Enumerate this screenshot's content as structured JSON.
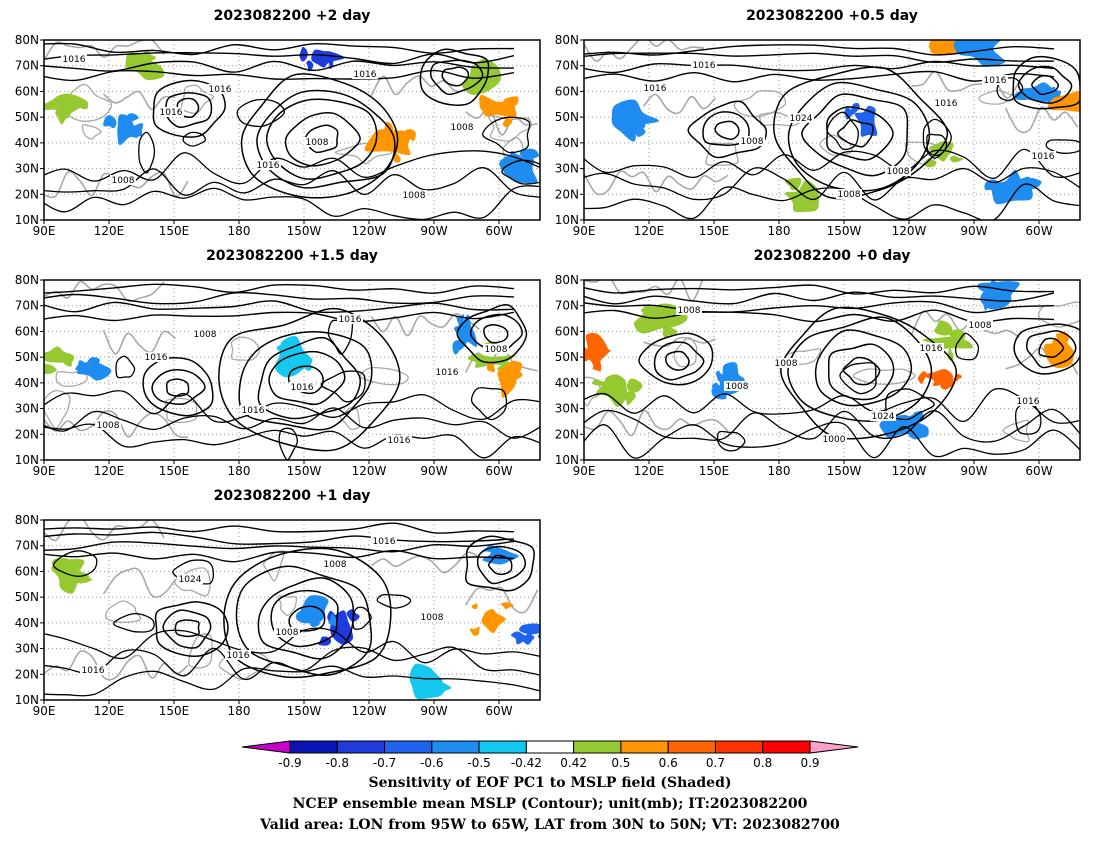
{
  "panels": [
    {
      "title": "2023082200 +2 day",
      "contour_labels": [
        "1016",
        "1016",
        "1016",
        "1016",
        "1008",
        "1008",
        "1016",
        "1008",
        "1008"
      ]
    },
    {
      "title": "2023082200 +0.5 day",
      "contour_labels": [
        "1016",
        "1008",
        "1008",
        "1016",
        "1016",
        "1016",
        "1024",
        "1008",
        "1016"
      ]
    },
    {
      "title": "2023082200 +1.5 day",
      "contour_labels": [
        "1016",
        "1016",
        "1016",
        "1016",
        "1008",
        "1008",
        "1016",
        "1016",
        "1008"
      ]
    },
    {
      "title": "2023082200 +0 day",
      "contour_labels": [
        "1008",
        "1000",
        "1016",
        "1016",
        "1008",
        "1008",
        "1024",
        "1008"
      ]
    },
    {
      "title": "2023082200 +1 day",
      "contour_labels": [
        "1016",
        "1008",
        "1008",
        "1016",
        "1024",
        "1008",
        "1016"
      ]
    }
  ],
  "axes": {
    "lat_ticks": [
      "10N",
      "20N",
      "30N",
      "40N",
      "50N",
      "60N",
      "70N",
      "80N"
    ],
    "lon_ticks": [
      "90E",
      "120E",
      "150E",
      "180",
      "150W",
      "120W",
      "90W",
      "60W"
    ]
  },
  "colorbar": {
    "ticks": [
      "-0.9",
      "-0.8",
      "-0.7",
      "-0.6",
      "-0.5",
      "-0.42",
      "0.42",
      "0.5",
      "0.6",
      "0.7",
      "0.8",
      "0.9"
    ],
    "colors": [
      "#c800c8",
      "#0a14b4",
      "#1e3cdc",
      "#1e64f0",
      "#1e8cf0",
      "#14c8f0",
      "#ffffff",
      "#96c832",
      "#ff9600",
      "#ff6400",
      "#ff3200",
      "#ff0000",
      "#ffa0c8"
    ]
  },
  "caption": {
    "line1": "Sensitivity of EOF PC1 to MSLP field (Shaded)",
    "line2": "NCEP ensemble mean MSLP (Contour); unit(mb); IT:2023082200",
    "line3": "Valid area: LON from 95W to 65W, LAT from 30N to 50N; VT: 2023082700"
  }
}
